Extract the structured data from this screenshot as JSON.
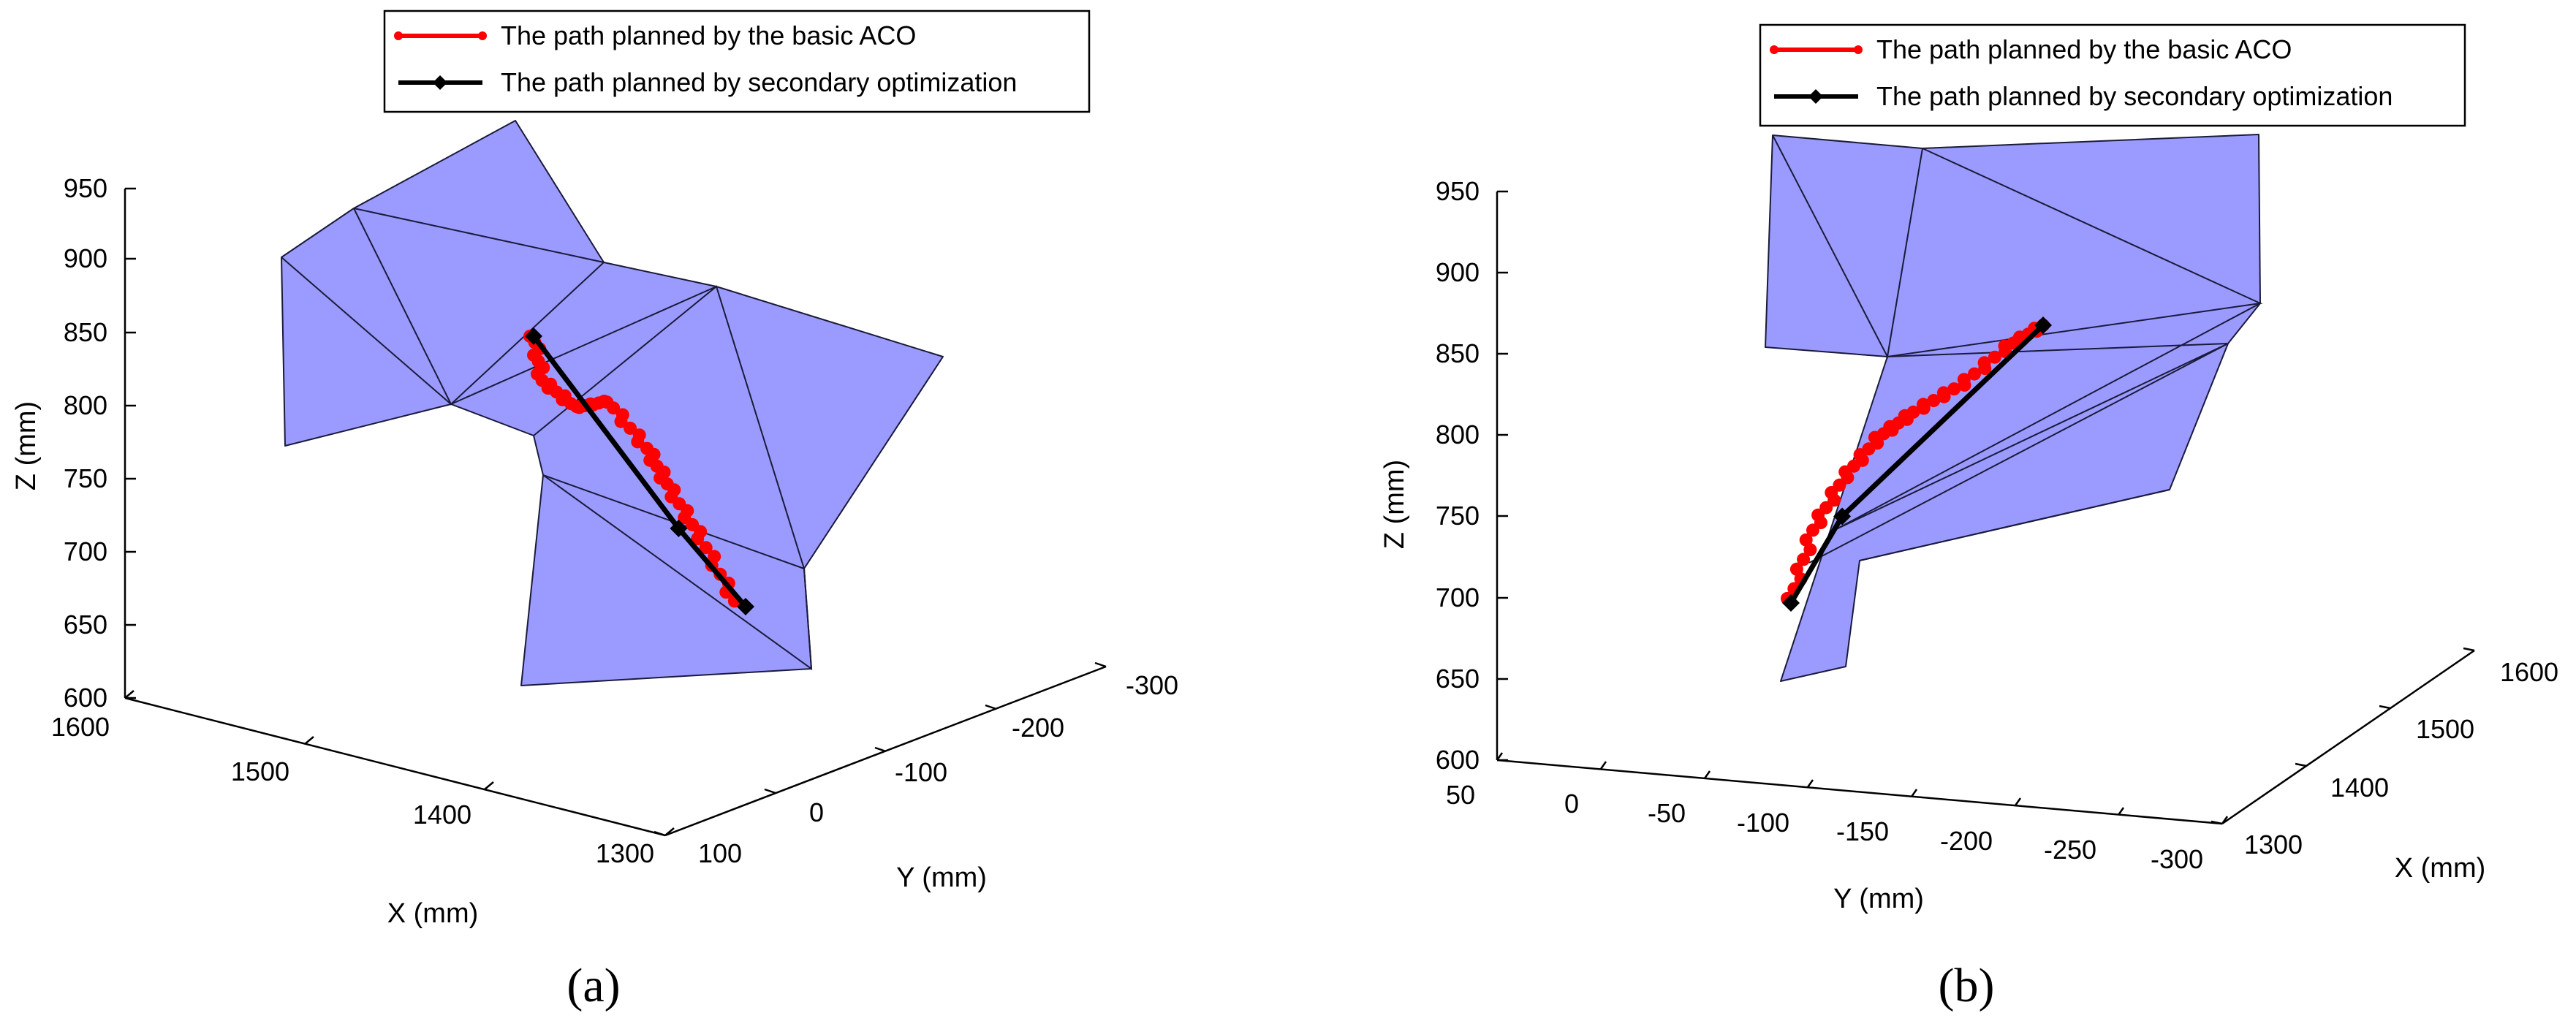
{
  "legend": {
    "aco_label": "The path planned by the basic ACO",
    "opt_label": "The path planned by secondary optimization",
    "aco_color": "#ff0000",
    "opt_color": "#000000"
  },
  "surface_color": "#9b9bff",
  "chart_data": [
    {
      "panel_label": "(a)",
      "type": "line",
      "zlabel": "Z (mm)",
      "xlabel": "X (mm)",
      "ylabel": "Y (mm)",
      "z_ticks": [
        "950",
        "900",
        "850",
        "800",
        "750",
        "700",
        "650",
        "600"
      ],
      "x_ticks": [
        "1600",
        "1500",
        "1400",
        "1300"
      ],
      "y_ticks": [
        "100",
        "0",
        "-100",
        "-200",
        "-300"
      ],
      "zlim": [
        600,
        950
      ],
      "xlim": [
        1300,
        1600
      ],
      "ylim": [
        -300,
        100
      ],
      "series": [
        {
          "name": "The path planned by the basic ACO",
          "points": [
            [
              1395,
              55,
              850
            ],
            [
              1398,
              40,
              820
            ],
            [
              1392,
              10,
              798
            ],
            [
              1390,
              -25,
              792
            ],
            [
              1380,
              -55,
              760
            ],
            [
              1372,
              -70,
              735
            ],
            [
              1362,
              -90,
              705
            ],
            [
              1350,
              -110,
              668
            ]
          ]
        },
        {
          "name": "The path planned by secondary optimization",
          "points": [
            [
              1395,
              55,
              850
            ],
            [
              1360,
              -60,
              720
            ],
            [
              1345,
              -115,
              665
            ]
          ]
        }
      ]
    },
    {
      "panel_label": "(b)",
      "type": "line",
      "zlabel": "Z (mm)",
      "xlabel": "X (mm)",
      "ylabel": "Y (mm)",
      "z_ticks": [
        "950",
        "900",
        "850",
        "800",
        "750",
        "700",
        "650",
        "600"
      ],
      "y_ticks": [
        "50",
        "0",
        "-50",
        "-100",
        "-150",
        "-200",
        "-250",
        "-300"
      ],
      "x_ticks": [
        "1300",
        "1400",
        "1500",
        "1600"
      ],
      "zlim": [
        600,
        950
      ],
      "xlim": [
        1300,
        1600
      ],
      "ylim": [
        -300,
        50
      ],
      "series": [
        {
          "name": "The path planned by the basic ACO",
          "points": [
            [
              1400,
              -130,
              700
            ],
            [
              1405,
              -140,
              745
            ],
            [
              1410,
              -155,
              780
            ],
            [
              1420,
              -170,
              805
            ],
            [
              1430,
              -185,
              820
            ],
            [
              1445,
              -205,
              835
            ],
            [
              1460,
              -225,
              858
            ],
            [
              1470,
              -240,
              870
            ]
          ]
        },
        {
          "name": "The path planned by secondary optimization",
          "points": [
            [
              1400,
              -130,
              697
            ],
            [
              1420,
              -150,
              750
            ],
            [
              1470,
              -240,
              870
            ]
          ]
        }
      ]
    }
  ]
}
